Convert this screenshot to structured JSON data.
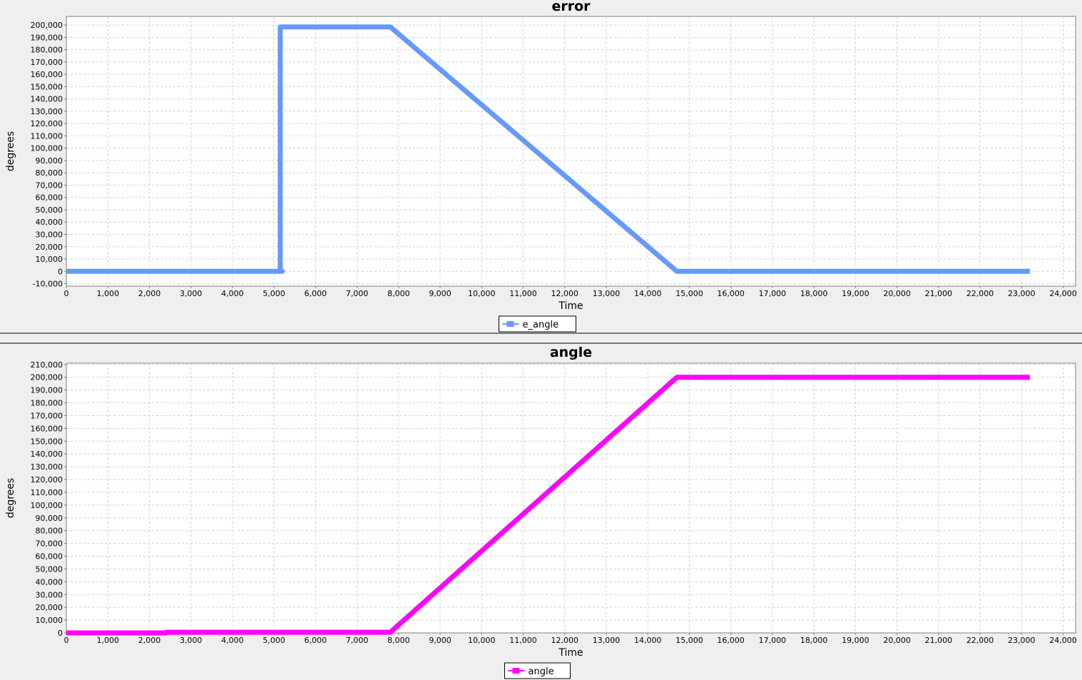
{
  "charts": [
    {
      "name": "error",
      "chart_data": {
        "type": "line",
        "title": "error",
        "xlabel": "Time",
        "ylabel": "degrees",
        "xlim": [
          0,
          24300
        ],
        "ylim": [
          -12000,
          207000
        ],
        "xticks": [
          0,
          1000,
          2000,
          3000,
          4000,
          5000,
          6000,
          7000,
          8000,
          9000,
          10000,
          11000,
          12000,
          13000,
          14000,
          15000,
          16000,
          17000,
          18000,
          19000,
          20000,
          21000,
          22000,
          23000,
          24000
        ],
        "yticks": [
          -10000,
          0,
          10000,
          20000,
          30000,
          40000,
          50000,
          60000,
          70000,
          80000,
          90000,
          100000,
          110000,
          120000,
          130000,
          140000,
          150000,
          160000,
          170000,
          180000,
          190000,
          200000
        ],
        "grid": true,
        "legend_position": "bottom-center",
        "series": [
          {
            "name": "e_angle",
            "color": "#6699ff",
            "points": [
              {
                "x": 0,
                "y": 0
              },
              {
                "x": 5200,
                "y": 0
              },
              {
                "x": 5150,
                "y": 0
              },
              {
                "x": 5150,
                "y": 198500
              },
              {
                "x": 7800,
                "y": 198500
              },
              {
                "x": 14700,
                "y": 0
              },
              {
                "x": 23200,
                "y": 0
              }
            ]
          }
        ]
      }
    },
    {
      "name": "angle",
      "chart_data": {
        "type": "line",
        "title": "angle",
        "xlabel": "Time",
        "ylabel": "degrees",
        "xlim": [
          0,
          24300
        ],
        "ylim": [
          0,
          211000
        ],
        "xticks": [
          0,
          1000,
          2000,
          3000,
          4000,
          5000,
          6000,
          7000,
          8000,
          9000,
          10000,
          11000,
          12000,
          13000,
          14000,
          15000,
          16000,
          17000,
          18000,
          19000,
          20000,
          21000,
          22000,
          23000,
          24000
        ],
        "yticks": [
          0,
          10000,
          20000,
          30000,
          40000,
          50000,
          60000,
          70000,
          80000,
          90000,
          100000,
          110000,
          120000,
          130000,
          140000,
          150000,
          160000,
          170000,
          180000,
          190000,
          200000,
          210000
        ],
        "grid": true,
        "legend_position": "bottom-center",
        "series": [
          {
            "name": "angle",
            "color": "#ff00ff",
            "points": [
              {
                "x": 0,
                "y": 0
              },
              {
                "x": 2400,
                "y": 0
              },
              {
                "x": 2400,
                "y": 500
              },
              {
                "x": 7800,
                "y": 500
              },
              {
                "x": 14700,
                "y": 200000
              },
              {
                "x": 23200,
                "y": 200000
              }
            ]
          }
        ]
      }
    }
  ]
}
